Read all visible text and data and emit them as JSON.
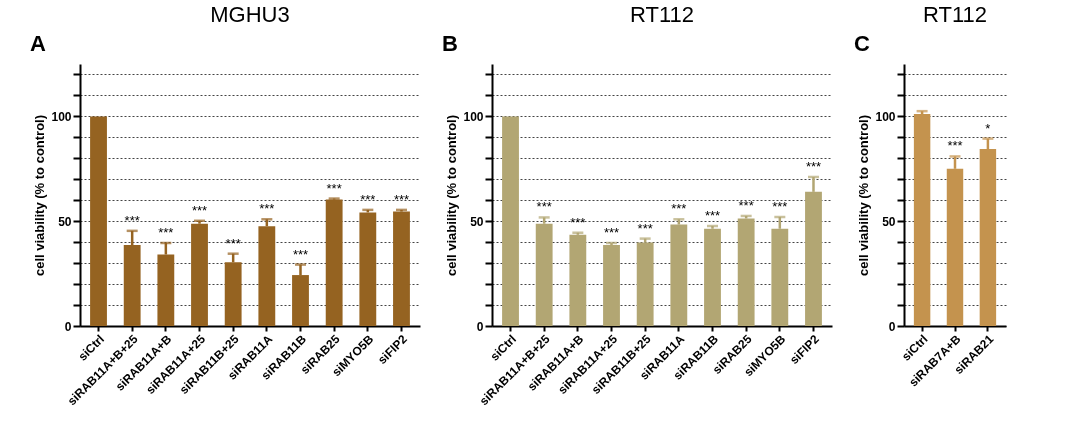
{
  "chart_data": [
    {
      "type": "bar",
      "title": "MGHU3",
      "ylabel": "cell viability (% to control)",
      "categories": [
        "siCtrl",
        "siRAB11A+B+25",
        "siRAB11A+B",
        "siRAB11A+25",
        "siRAB11B+25",
        "siRAB11A",
        "siRAB11B",
        "siRAB25",
        "siMYO5B",
        "siFIP2"
      ],
      "values": [
        100,
        38.6,
        34.1,
        48.8,
        30.4,
        47.6,
        24.3,
        60.3,
        54.2,
        54.6
      ],
      "errors": [
        null,
        [
          38.6,
          45.4
        ],
        [
          34.1,
          39.6
        ],
        [
          48.8,
          50.2
        ],
        [
          30.4,
          34.5
        ],
        [
          47.6,
          50.9
        ],
        [
          24.3,
          29.3
        ],
        [
          60.3,
          60.8
        ],
        [
          54.2,
          55.4
        ],
        [
          54.6,
          55.4
        ]
      ],
      "color": "#956321",
      "ylim": [
        0,
        125
      ],
      "yticks": [
        0,
        {
          "value": 10,
          "label": null
        },
        {
          "value": 20,
          "label": null
        },
        {
          "value": 30,
          "label": null
        },
        {
          "value": 40,
          "label": null
        },
        50,
        {
          "value": 60,
          "label": null
        },
        {
          "value": 70,
          "label": null
        },
        {
          "value": 80,
          "label": null
        },
        {
          "value": 90,
          "label": null
        },
        100,
        {
          "value": 110,
          "label": null
        },
        {
          "value": 120,
          "label": null
        }
      ],
      "grid": "y",
      "annotations": [
        "A",
        {
          "text": "***",
          "x": "siRAB11A+B+25",
          "y": 45.4
        },
        {
          "text": "***",
          "x": "siRAB11A+B",
          "y": 39.6
        },
        {
          "text": "***",
          "x": "siRAB11A+25",
          "y": 50.2
        },
        {
          "text": "***",
          "x": "siRAB11B+25",
          "y": 34.5
        },
        {
          "text": "***",
          "x": "siRAB11A",
          "y": 50.9
        },
        {
          "text": "***",
          "x": "siRAB11B",
          "y": 29.3
        },
        {
          "text": "***",
          "x": "siRAB25",
          "y": 60.8
        },
        {
          "text": "***",
          "x": "siMYO5B",
          "y": 55.4
        },
        {
          "text": "***",
          "x": "siFIP2",
          "y": 55.4
        }
      ]
    },
    {
      "type": "bar",
      "title": "RT112",
      "ylabel": "cell viability (% to control)",
      "categories": [
        "siCtrl",
        "siRAB11A+B+25",
        "siRAB11A+B",
        "siRAB11A+25",
        "siRAB11B+25",
        "siRAB11A",
        "siRAB11B",
        "siRAB25",
        "siMYO5B",
        "siFIP2"
      ],
      "values": [
        100,
        48.8,
        43.5,
        38.6,
        39.8,
        48.4,
        46.4,
        51.3,
        46.4,
        64.0
      ],
      "errors": [
        null,
        [
          48.8,
          51.8
        ],
        [
          43.5,
          44.5
        ],
        [
          38.6,
          39.6
        ],
        [
          39.8,
          41.7
        ],
        [
          48.4,
          50.9
        ],
        [
          46.4,
          47.7
        ],
        [
          51.3,
          52.5
        ],
        [
          46.4,
          52.0
        ],
        [
          64.0,
          71.1
        ]
      ],
      "color": "#b2a673",
      "ylim": [
        0,
        125
      ],
      "yticks": [
        0,
        {
          "value": 10,
          "label": null
        },
        {
          "value": 20,
          "label": null
        },
        {
          "value": 30,
          "label": null
        },
        {
          "value": 40,
          "label": null
        },
        50,
        {
          "value": 60,
          "label": null
        },
        {
          "value": 70,
          "label": null
        },
        {
          "value": 80,
          "label": null
        },
        {
          "value": 90,
          "label": null
        },
        100,
        {
          "value": 110,
          "label": null
        },
        {
          "value": 120,
          "label": null
        }
      ],
      "grid": "y",
      "annotations": [
        "B",
        {
          "text": "***",
          "x": "siRAB11A+B+25",
          "y": 51.8
        },
        {
          "text": "***",
          "x": "siRAB11A+B",
          "y": 44.5
        },
        {
          "text": "***",
          "x": "siRAB11A+25",
          "y": 39.6
        },
        {
          "text": "***",
          "x": "siRAB11B+25",
          "y": 41.7
        },
        {
          "text": "***",
          "x": "siRAB11A",
          "y": 50.9
        },
        {
          "text": "***",
          "x": "siRAB11B",
          "y": 47.7
        },
        {
          "text": "***",
          "x": "siRAB25",
          "y": 52.5
        },
        {
          "text": "***",
          "x": "siMYO5B",
          "y": 52.0
        },
        {
          "text": "***",
          "x": "siFIP2",
          "y": 71.1
        }
      ]
    },
    {
      "type": "bar",
      "title": "RT112",
      "ylabel": "cell viability (% to control)",
      "categories": [
        "siCtrl",
        "siRAB7A+B",
        "siRAB21"
      ],
      "values": [
        101.1,
        75.0,
        84.4
      ],
      "errors": [
        [
          101.1,
          102.5
        ],
        [
          75.0,
          80.9
        ],
        [
          84.4,
          89.4
        ]
      ],
      "color": "#c4934e",
      "ylim": [
        0,
        125
      ],
      "yticks": [
        0,
        {
          "value": 10,
          "label": null
        },
        {
          "value": 20,
          "label": null
        },
        {
          "value": 30,
          "label": null
        },
        {
          "value": 40,
          "label": null
        },
        50,
        {
          "value": 60,
          "label": null
        },
        {
          "value": 70,
          "label": null
        },
        {
          "value": 80,
          "label": null
        },
        {
          "value": 90,
          "label": null
        },
        100,
        {
          "value": 110,
          "label": null
        },
        {
          "value": 120,
          "label": null
        }
      ],
      "grid": "y",
      "annotations": [
        "C",
        {
          "text": "***",
          "x": "siRAB7A+B",
          "y": 80.9
        },
        {
          "text": "*",
          "x": "siRAB21",
          "y": 89.4
        }
      ]
    }
  ]
}
